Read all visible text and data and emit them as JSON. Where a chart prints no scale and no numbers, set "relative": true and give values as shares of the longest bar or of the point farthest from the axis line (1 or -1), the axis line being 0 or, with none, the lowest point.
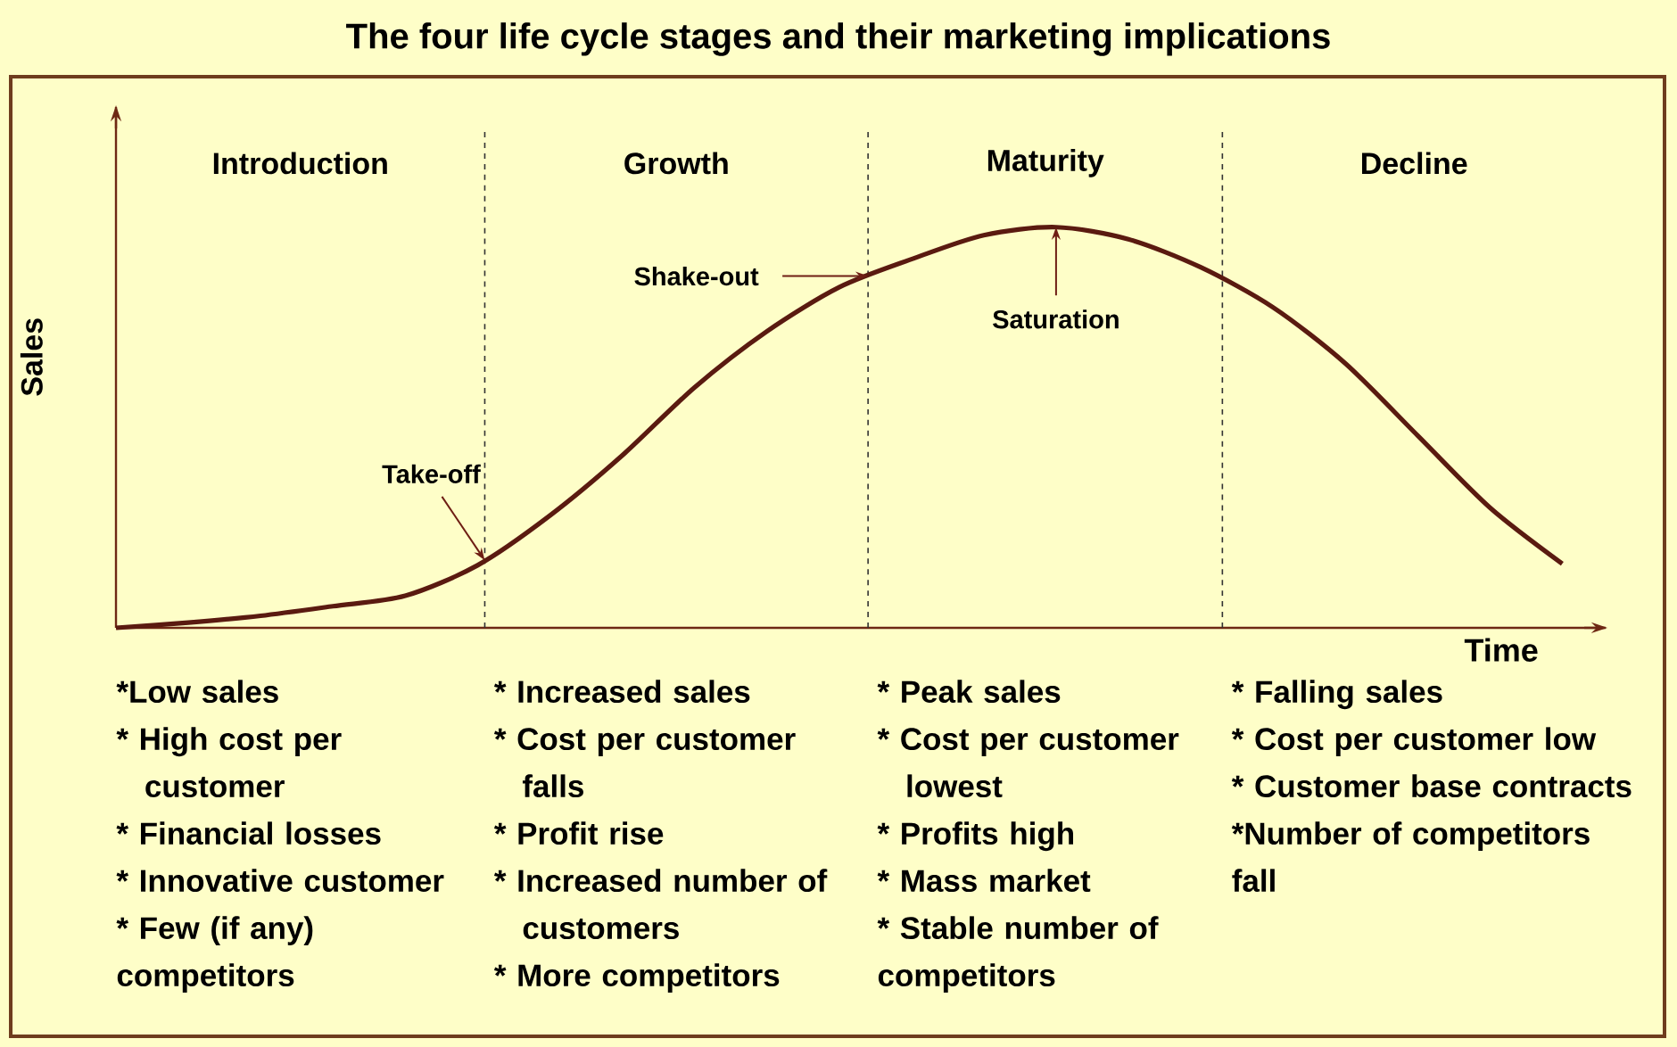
{
  "chart_data": {
    "type": "line",
    "title": "The four life cycle stages and their marketing implications",
    "xlabel": "Time",
    "ylabel": "Sales",
    "relative": true,
    "categories": [
      null,
      null,
      null,
      null,
      null,
      null,
      null,
      null,
      null,
      null,
      null,
      null,
      null,
      null,
      null,
      null,
      null,
      null,
      null,
      null,
      null
    ],
    "series": [
      {
        "color": "#5a1a10",
        "line_style": "solid",
        "values": [
          0,
          0.013,
          0.03,
          0.054,
          0.08,
          0.156,
          0.28,
          0.43,
          0.6,
          0.74,
          0.85,
          0.92,
          0.98,
          1.0,
          0.97,
          0.9,
          0.8,
          0.66,
          0.48,
          0.3,
          0.16
        ]
      }
    ],
    "annotations": [
      "Introduction",
      "Growth",
      "Maturity",
      "Decline",
      "Take-off",
      "Shake-out",
      "Saturation",
      "*Low sales",
      "* High cost per customer",
      "* Financial losses",
      "* Innovative customer",
      "* Few (if any) competitors",
      "* Increased sales",
      "* Cost per customer falls",
      "* Profit rise",
      "* Increased number of customers",
      "* More competitors",
      "* Peak sales",
      "* Cost per customer lowest",
      "* Profits high",
      "* Mass market",
      "* Stable number of competitors",
      "* Falling sales",
      "* Cost per customer low",
      "* Customer base contracts",
      "*Number of competitors fall"
    ]
  }
}
